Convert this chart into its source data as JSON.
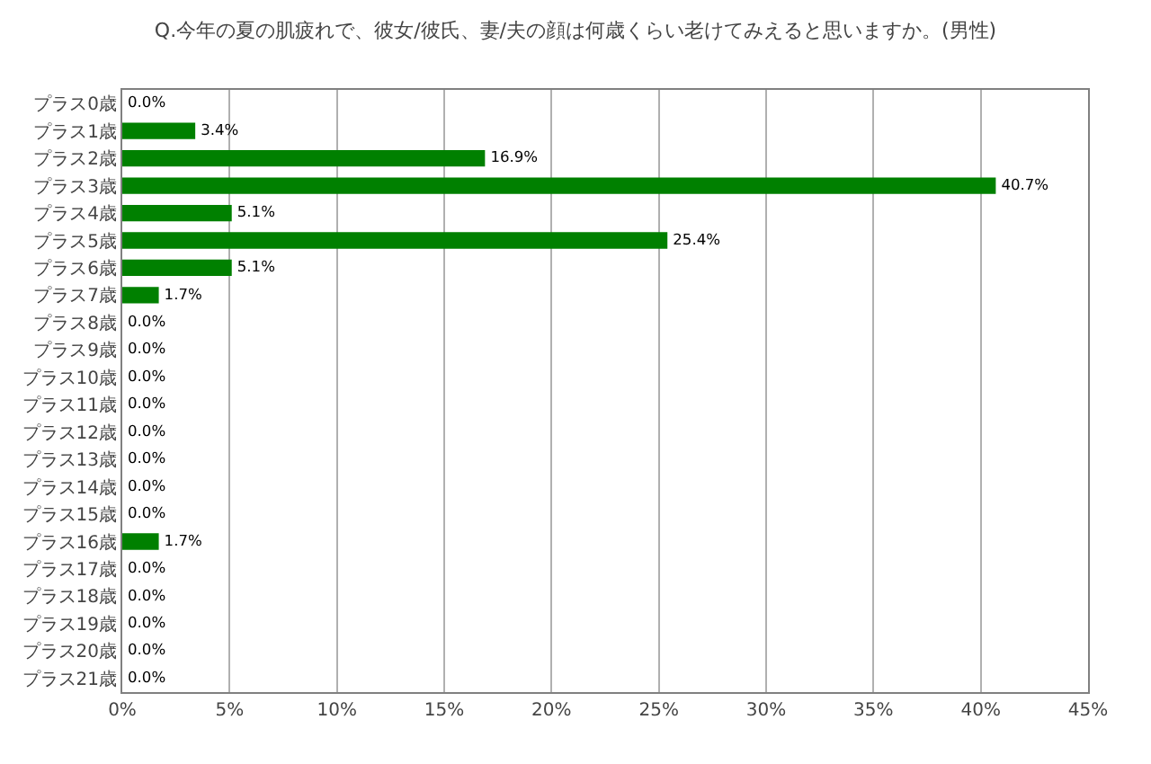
{
  "chart_data": {
    "type": "bar",
    "orientation": "horizontal",
    "title": "Q.今年の夏の肌疲れで、彼女/彼氏、妻/夫の顔は何歳くらい老けてみえると思いますか。(男性)",
    "categories": [
      "プラス0歳",
      "プラス1歳",
      "プラス2歳",
      "プラス3歳",
      "プラス4歳",
      "プラス5歳",
      "プラス6歳",
      "プラス7歳",
      "プラス8歳",
      "プラス9歳",
      "プラス10歳",
      "プラス11歳",
      "プラス12歳",
      "プラス13歳",
      "プラス14歳",
      "プラス15歳",
      "プラス16歳",
      "プラス17歳",
      "プラス18歳",
      "プラス19歳",
      "プラス20歳",
      "プラス21歳"
    ],
    "values": [
      0,
      3.4,
      16.9,
      40.7,
      5.1,
      25.4,
      5.1,
      1.7,
      0,
      0,
      0,
      0,
      0,
      0,
      0,
      0,
      1.7,
      0,
      0,
      0,
      0,
      0
    ],
    "value_labels": [
      "0.0%",
      "3.4%",
      "16.9%",
      "40.7%",
      "5.1%",
      "25.4%",
      "5.1%",
      "1.7%",
      "0.0%",
      "0.0%",
      "0.0%",
      "0.0%",
      "0.0%",
      "0.0%",
      "0.0%",
      "0.0%",
      "1.7%",
      "0.0%",
      "0.0%",
      "0.0%",
      "0.0%",
      "0.0%"
    ],
    "color": "#008000",
    "xlim": [
      0,
      45
    ],
    "xticks": [
      {
        "value": 0,
        "label": "0%"
      },
      {
        "value": 5,
        "label": "5%"
      },
      {
        "value": 10,
        "label": "10%"
      },
      {
        "value": 15,
        "label": "15%"
      },
      {
        "value": 20,
        "label": "20%"
      },
      {
        "value": 25,
        "label": "25%"
      },
      {
        "value": 30,
        "label": "30%"
      },
      {
        "value": 35,
        "label": "35%"
      },
      {
        "value": 40,
        "label": "40%"
      },
      {
        "value": 45,
        "label": "45%"
      }
    ],
    "grid": "x"
  }
}
